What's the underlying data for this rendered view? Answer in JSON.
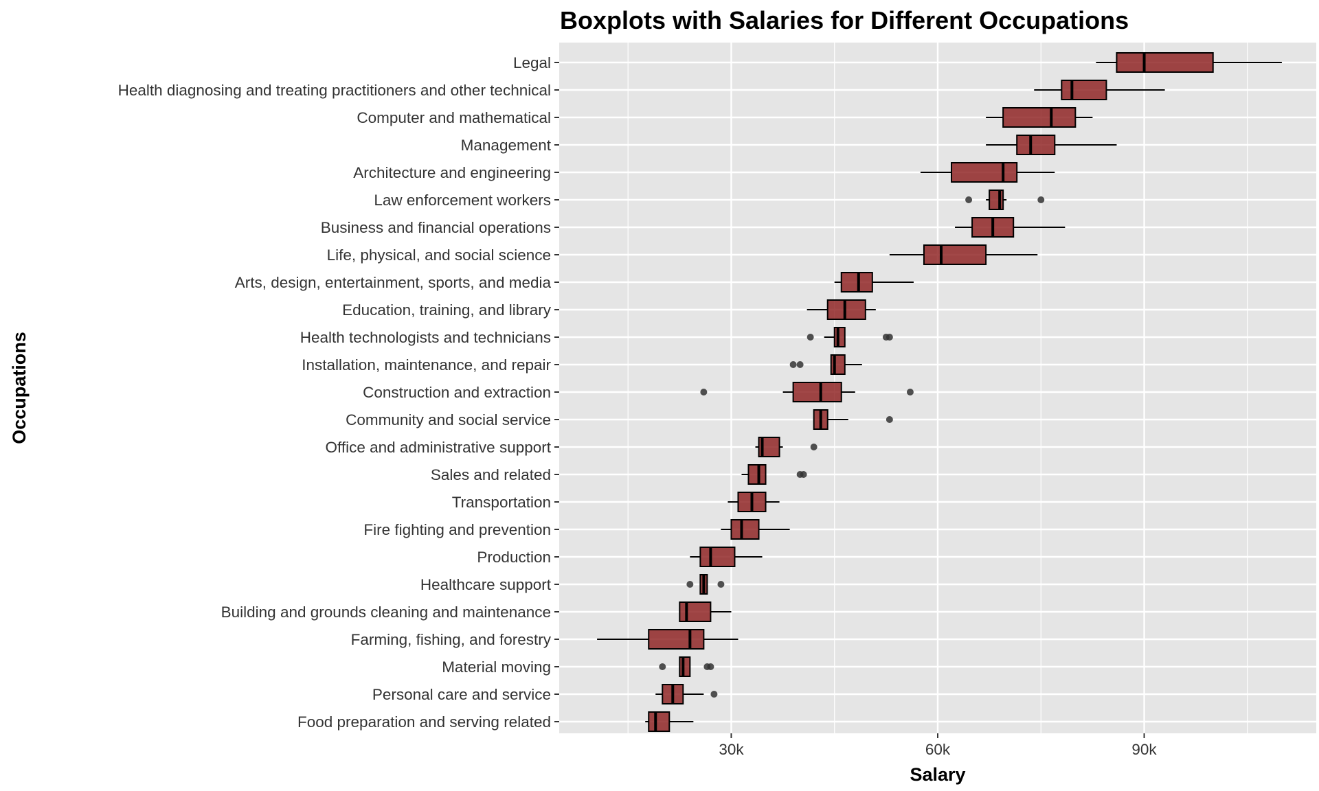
{
  "chart_data": {
    "type": "boxplot",
    "title": "Boxplots with Salaries for Different Occupations",
    "xlabel": "Salary",
    "ylabel": "Occupations",
    "xlim": [
      5000,
      115000
    ],
    "x_ticks": [
      30000,
      60000,
      90000
    ],
    "x_tick_labels": [
      "30k",
      "60k",
      "90k"
    ],
    "grid": true,
    "orientation": "horizontal",
    "colors": {
      "panel": "#e5e5e5",
      "grid": "#ffffff",
      "box_fill": "#8b1a1a",
      "box_opacity": 0.8,
      "outline": "#000000",
      "outlier": "#333333"
    },
    "categories": [
      "Legal",
      "Health diagnosing and treating practitioners and other technical",
      "Computer and mathematical",
      "Management",
      "Architecture and engineering",
      "Law enforcement workers",
      "Business and financial operations",
      "Life, physical, and social science",
      "Arts, design, entertainment, sports, and media",
      "Education, training, and library",
      "Health technologists and technicians",
      "Installation, maintenance, and repair",
      "Construction and extraction",
      "Community and social service",
      "Office and administrative support",
      "Sales and related",
      "Transportation",
      "Fire fighting and prevention",
      "Production",
      "Healthcare support",
      "Building and grounds cleaning and maintenance",
      "Farming, fishing, and forestry",
      "Material moving",
      "Personal care and service",
      "Food preparation and serving related"
    ],
    "boxes": [
      {
        "min": 83000,
        "q1": 86000,
        "median": 90000,
        "q3": 100000,
        "max": 110000,
        "outliers": []
      },
      {
        "min": 74000,
        "q1": 78000,
        "median": 79500,
        "q3": 84500,
        "max": 93000,
        "outliers": []
      },
      {
        "min": 67000,
        "q1": 69500,
        "median": 76500,
        "q3": 80000,
        "max": 82500,
        "outliers": []
      },
      {
        "min": 67000,
        "q1": 71500,
        "median": 73500,
        "q3": 77000,
        "max": 86000,
        "outliers": []
      },
      {
        "min": 57500,
        "q1": 62000,
        "median": 69500,
        "q3": 71500,
        "max": 77000,
        "outliers": []
      },
      {
        "min": 67000,
        "q1": 67500,
        "median": 69000,
        "q3": 69500,
        "max": 70000,
        "outliers": [
          64500,
          75000
        ]
      },
      {
        "min": 62500,
        "q1": 65000,
        "median": 68000,
        "q3": 71000,
        "max": 78500,
        "outliers": []
      },
      {
        "min": 53000,
        "q1": 58000,
        "median": 60500,
        "q3": 67000,
        "max": 74500,
        "outliers": []
      },
      {
        "min": 45000,
        "q1": 46000,
        "median": 48500,
        "q3": 50500,
        "max": 56500,
        "outliers": []
      },
      {
        "min": 41000,
        "q1": 44000,
        "median": 46500,
        "q3": 49500,
        "max": 51000,
        "outliers": []
      },
      {
        "min": 43500,
        "q1": 45000,
        "median": 45500,
        "q3": 46500,
        "max": 46500,
        "outliers": [
          41500,
          52500,
          53000
        ]
      },
      {
        "min": 44500,
        "q1": 44500,
        "median": 45000,
        "q3": 46500,
        "max": 49000,
        "outliers": [
          39000,
          40000
        ]
      },
      {
        "min": 37500,
        "q1": 39000,
        "median": 43000,
        "q3": 46000,
        "max": 48000,
        "outliers": [
          26000,
          56000
        ]
      },
      {
        "min": 42000,
        "q1": 42000,
        "median": 43000,
        "q3": 44000,
        "max": 47000,
        "outliers": [
          53000
        ]
      },
      {
        "min": 33500,
        "q1": 34000,
        "median": 34500,
        "q3": 37000,
        "max": 37500,
        "outliers": [
          42000
        ]
      },
      {
        "min": 31500,
        "q1": 32500,
        "median": 34000,
        "q3": 35000,
        "max": 35000,
        "outliers": [
          40000,
          40500
        ]
      },
      {
        "min": 29500,
        "q1": 31000,
        "median": 33000,
        "q3": 35000,
        "max": 37000,
        "outliers": []
      },
      {
        "min": 28500,
        "q1": 30000,
        "median": 31500,
        "q3": 34000,
        "max": 38500,
        "outliers": []
      },
      {
        "min": 24000,
        "q1": 25500,
        "median": 27000,
        "q3": 30500,
        "max": 34500,
        "outliers": []
      },
      {
        "min": 25500,
        "q1": 25500,
        "median": 26000,
        "q3": 26500,
        "max": 26500,
        "outliers": [
          24000,
          28500
        ]
      },
      {
        "min": 22500,
        "q1": 22500,
        "median": 23500,
        "q3": 27000,
        "max": 30000,
        "outliers": []
      },
      {
        "min": 10500,
        "q1": 18000,
        "median": 24000,
        "q3": 26000,
        "max": 31000,
        "outliers": []
      },
      {
        "min": 22500,
        "q1": 22500,
        "median": 23000,
        "q3": 24000,
        "max": 24000,
        "outliers": [
          20000,
          26500,
          27000
        ]
      },
      {
        "min": 19000,
        "q1": 20000,
        "median": 21500,
        "q3": 23000,
        "max": 26000,
        "outliers": [
          27500
        ]
      },
      {
        "min": 17500,
        "q1": 18000,
        "median": 19000,
        "q3": 21000,
        "max": 24500,
        "outliers": []
      }
    ]
  }
}
